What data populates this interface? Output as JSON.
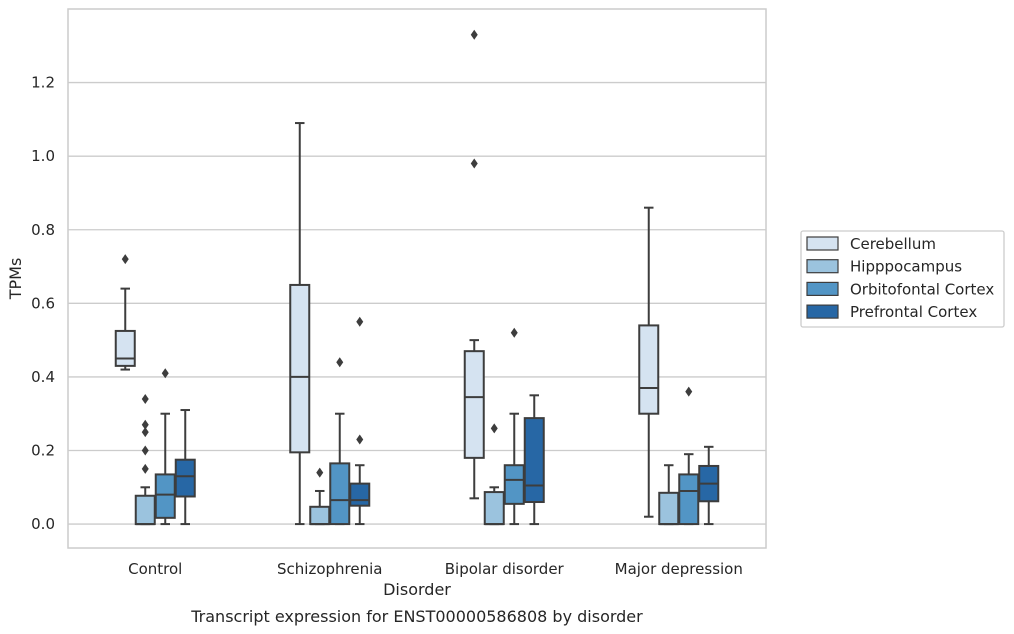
{
  "chart_data": {
    "type": "box",
    "caption": "Transcript expression for ENST00000586808 by disorder",
    "xlabel": "Disorder",
    "ylabel": "TPMs",
    "ylim": [
      -0.065,
      1.4
    ],
    "yticks": [
      "0.0",
      "0.2",
      "0.4",
      "0.6",
      "0.8",
      "1.0",
      "1.2"
    ],
    "ytick_values": [
      0.0,
      0.2,
      0.4,
      0.6,
      0.8,
      1.0,
      1.2
    ],
    "grid": "horizontal",
    "legend_position": "right",
    "categories": [
      "Control",
      "Schizophrenia",
      "Bipolar disorder",
      "Major depression"
    ],
    "series": [
      {
        "name": "Cerebellum",
        "color": "#d5e3f1",
        "boxes": [
          {
            "whislo": 0.42,
            "q1": 0.43,
            "med": 0.45,
            "q3": 0.525,
            "whishi": 0.64,
            "fliers": [
              0.72
            ]
          },
          {
            "whislo": 0.0,
            "q1": 0.195,
            "med": 0.4,
            "q3": 0.65,
            "whishi": 1.09,
            "fliers": []
          },
          {
            "whislo": 0.07,
            "q1": 0.18,
            "med": 0.345,
            "q3": 0.47,
            "whishi": 0.5,
            "fliers": [
              0.98,
              1.33
            ]
          },
          {
            "whislo": 0.02,
            "q1": 0.3,
            "med": 0.37,
            "q3": 0.54,
            "whishi": 0.86,
            "fliers": []
          }
        ]
      },
      {
        "name": "Hipppocampus",
        "color": "#9bc3de",
        "boxes": [
          {
            "whislo": 0.0,
            "q1": 0.0,
            "med": 0.0,
            "q3": 0.077,
            "whishi": 0.1,
            "fliers": [
              0.15,
              0.2,
              0.25,
              0.27,
              0.34
            ]
          },
          {
            "whislo": 0.0,
            "q1": 0.0,
            "med": 0.0,
            "q3": 0.047,
            "whishi": 0.09,
            "fliers": [
              0.14
            ]
          },
          {
            "whislo": 0.0,
            "q1": 0.0,
            "med": 0.0,
            "q3": 0.087,
            "whishi": 0.1,
            "fliers": [
              0.26
            ]
          },
          {
            "whislo": 0.0,
            "q1": 0.0,
            "med": 0.0,
            "q3": 0.085,
            "whishi": 0.16,
            "fliers": []
          }
        ]
      },
      {
        "name": "Orbitofontal Cortex",
        "color": "#5295c5",
        "boxes": [
          {
            "whislo": 0.0,
            "q1": 0.017,
            "med": 0.08,
            "q3": 0.135,
            "whishi": 0.3,
            "fliers": [
              0.41
            ]
          },
          {
            "whislo": 0.0,
            "q1": 0.0,
            "med": 0.065,
            "q3": 0.165,
            "whishi": 0.3,
            "fliers": [
              0.44
            ]
          },
          {
            "whislo": 0.0,
            "q1": 0.055,
            "med": 0.12,
            "q3": 0.16,
            "whishi": 0.3,
            "fliers": [
              0.52
            ]
          },
          {
            "whislo": 0.0,
            "q1": 0.0,
            "med": 0.09,
            "q3": 0.135,
            "whishi": 0.19,
            "fliers": [
              0.36
            ]
          }
        ]
      },
      {
        "name": "Prefrontal Cortex",
        "color": "#2767a5",
        "boxes": [
          {
            "whislo": 0.0,
            "q1": 0.075,
            "med": 0.13,
            "q3": 0.175,
            "whishi": 0.31,
            "fliers": []
          },
          {
            "whislo": 0.0,
            "q1": 0.05,
            "med": 0.065,
            "q3": 0.11,
            "whishi": 0.16,
            "fliers": [
              0.23,
              0.55
            ]
          },
          {
            "whislo": 0.0,
            "q1": 0.06,
            "med": 0.105,
            "q3": 0.288,
            "whishi": 0.35,
            "fliers": []
          },
          {
            "whislo": 0.0,
            "q1": 0.062,
            "med": 0.11,
            "q3": 0.158,
            "whishi": 0.21,
            "fliers": []
          }
        ]
      }
    ]
  }
}
